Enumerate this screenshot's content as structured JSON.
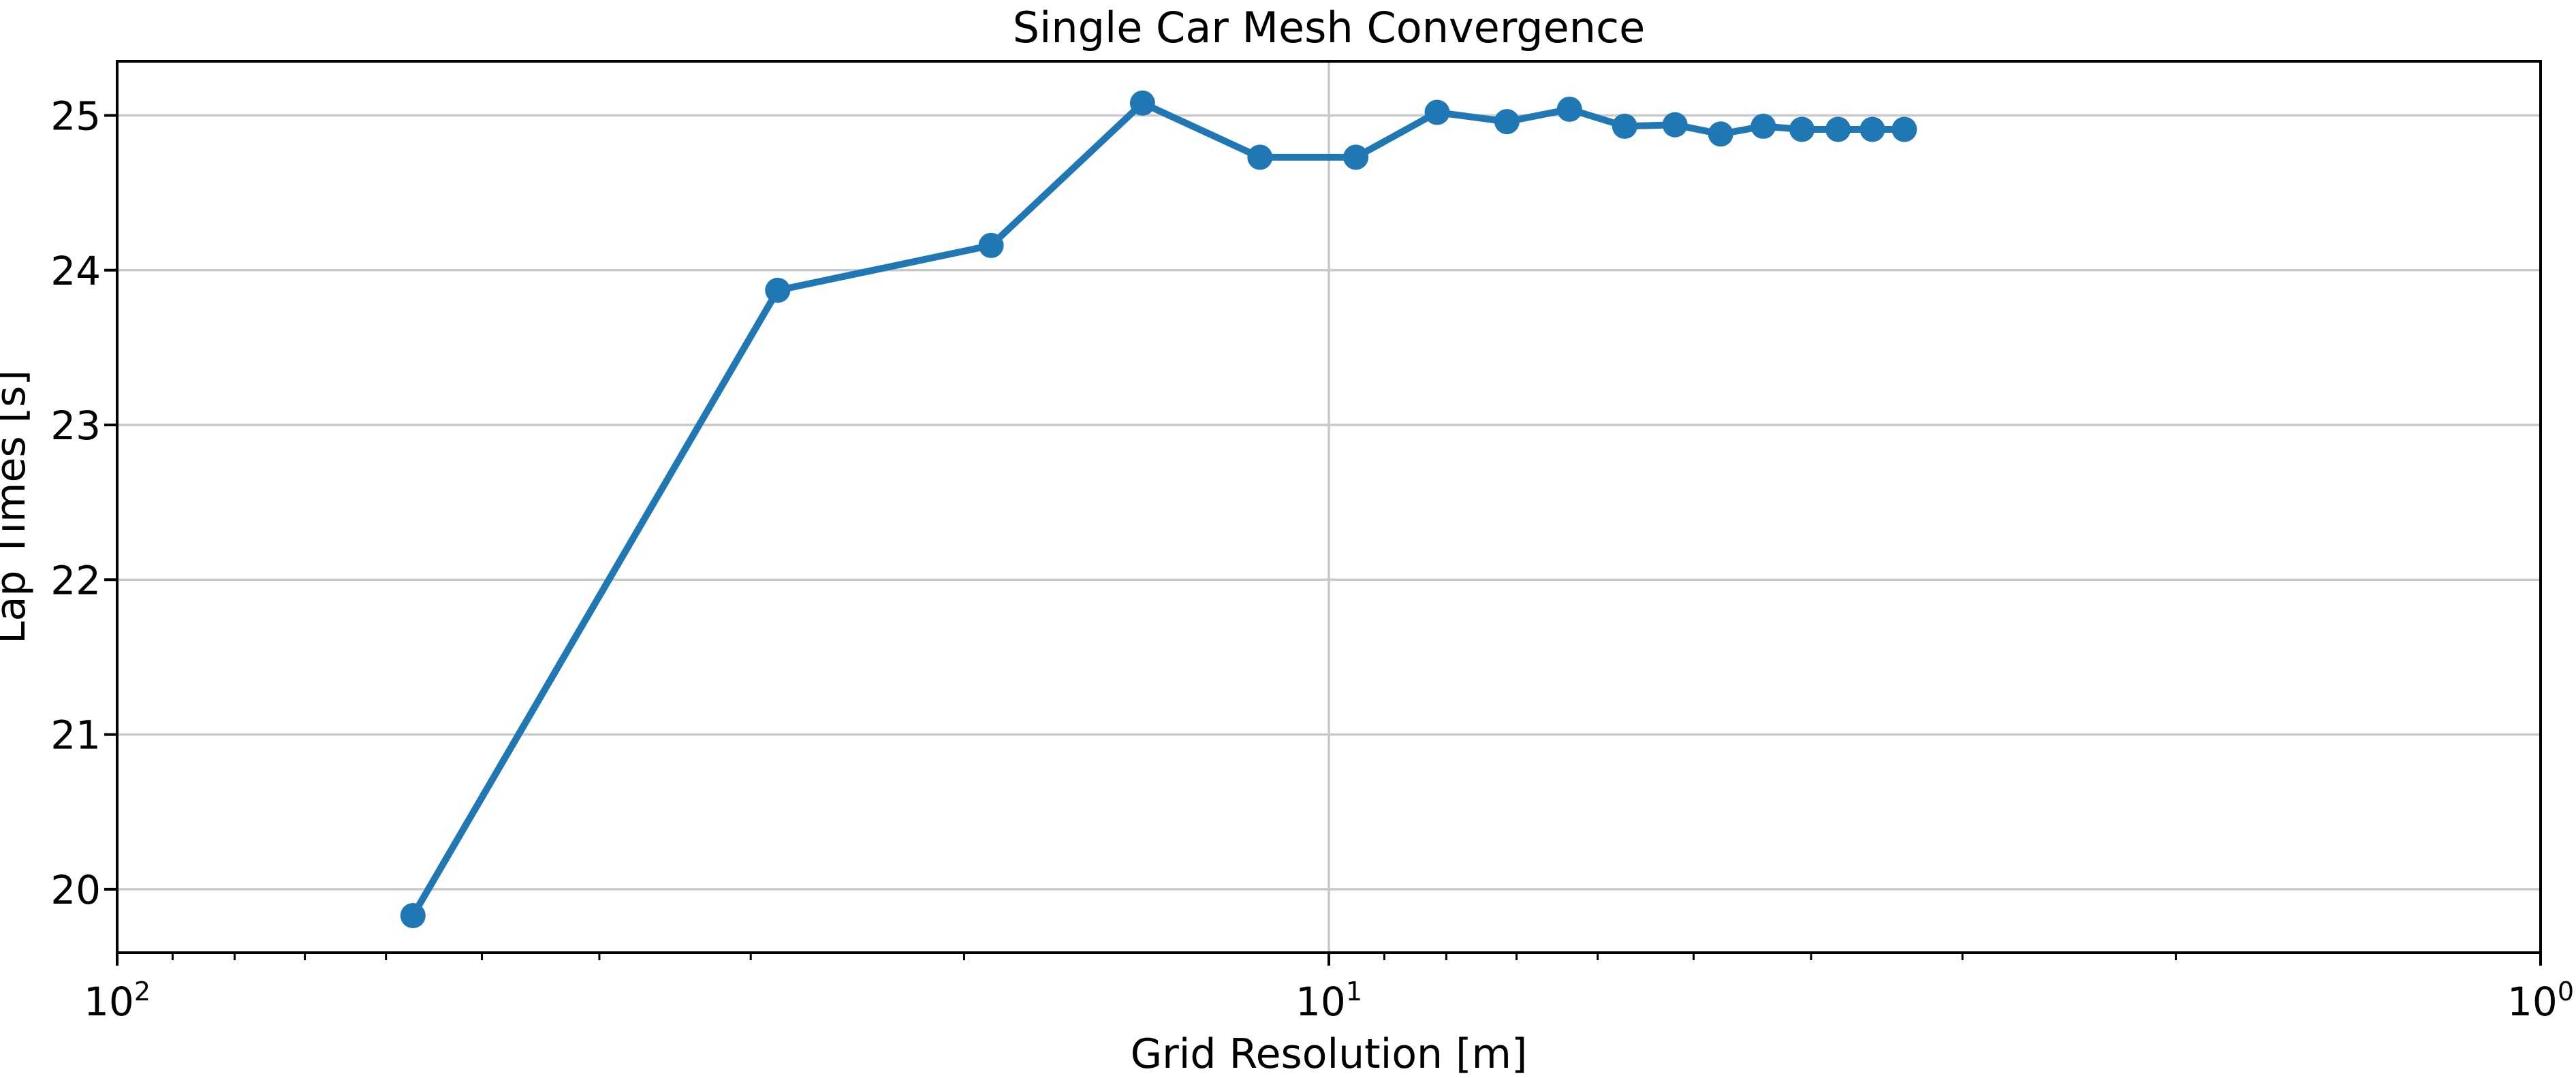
{
  "chart_data": {
    "type": "line",
    "title": "Single Car Mesh Convergence",
    "xlabel": "Grid Resolution [m]",
    "ylabel": "Lap Times [s]",
    "x_scale": "log",
    "x_inverted": true,
    "xlim": [
      100,
      1
    ],
    "ylim": [
      19.59,
      25.35
    ],
    "grid": "major",
    "legend": "none",
    "series": [
      {
        "name": "lap-times",
        "color": "#1f77b4",
        "marker": "circle",
        "x": [
          57.0,
          28.5,
          19.0,
          14.25,
          11.4,
          9.5,
          8.14,
          7.13,
          6.33,
          5.7,
          5.18,
          4.75,
          4.38,
          4.07,
          3.8,
          3.56,
          3.35
        ],
        "y": [
          19.83,
          23.87,
          24.16,
          25.08,
          24.73,
          24.73,
          25.02,
          24.96,
          25.04,
          24.93,
          24.94,
          24.88,
          24.93,
          24.91,
          24.91,
          24.91,
          24.91
        ]
      }
    ],
    "yticks": [
      20,
      21,
      22,
      23,
      24,
      25
    ],
    "xticks": [
      {
        "value": 100,
        "base": "10",
        "exp": "2"
      },
      {
        "value": 10,
        "base": "10",
        "exp": "1"
      },
      {
        "value": 1,
        "base": "10",
        "exp": "0"
      }
    ],
    "x_minor_ticks": [
      90,
      80,
      70,
      60,
      50,
      40,
      30,
      20,
      9,
      8,
      7,
      6,
      5,
      4,
      3,
      2
    ],
    "colors": {
      "line": "#1f77b4",
      "grid": "#c9c9c9",
      "axis": "#000000",
      "text": "#000000",
      "background": "#ffffff"
    }
  }
}
